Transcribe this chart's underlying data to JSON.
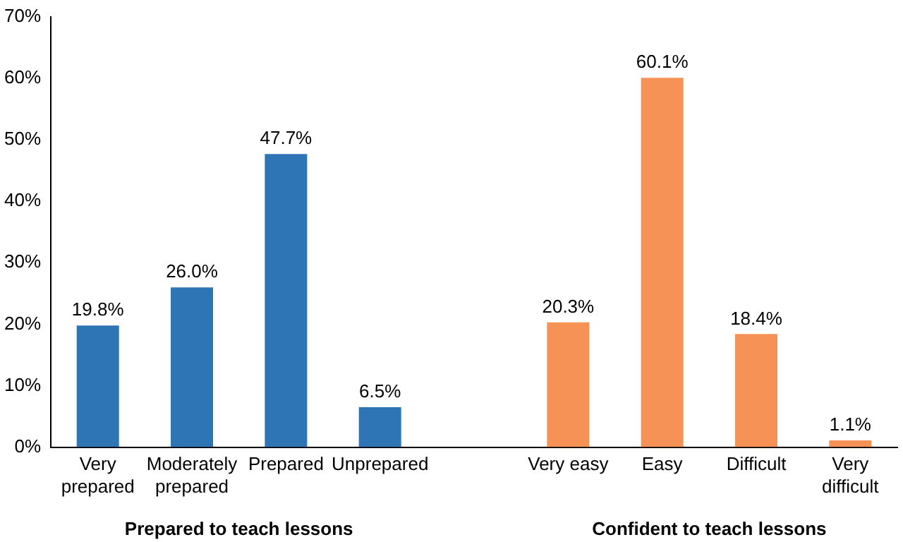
{
  "chart_data": {
    "type": "bar",
    "categories": [
      "Very prepared",
      "Moderately prepared",
      "Prepared",
      "Unprepared",
      null,
      "Very easy",
      "Easy",
      "Difficult",
      "Very difficult"
    ],
    "values": [
      19.8,
      26.0,
      47.7,
      6.5,
      null,
      20.3,
      60.1,
      18.4,
      1.1
    ],
    "value_labels": [
      "19.8%",
      "26.0%",
      "47.7%",
      "6.5%",
      null,
      "20.3%",
      "60.1%",
      "18.4%",
      "1.1%"
    ],
    "colors": [
      "#2e75b6",
      "#2e75b6",
      "#2e75b6",
      "#2e75b6",
      "#2e75b6",
      "#f79256",
      "#f79256",
      "#f79256",
      "#f79256"
    ],
    "ylim": [
      0,
      70
    ],
    "yticks": [
      {
        "value": 0,
        "label": "0%"
      },
      {
        "value": 10,
        "label": "10%"
      },
      {
        "value": 20,
        "label": "20%"
      },
      {
        "value": 30,
        "label": "30%"
      },
      {
        "value": 40,
        "label": "40%"
      },
      {
        "value": 50,
        "label": "50%"
      },
      {
        "value": 60,
        "label": "60%"
      },
      {
        "value": 70,
        "label": "70%"
      }
    ],
    "grid": false,
    "legend": false,
    "annotations": [
      "Prepared to teach lessons",
      "Confident to teach lessons"
    ]
  }
}
